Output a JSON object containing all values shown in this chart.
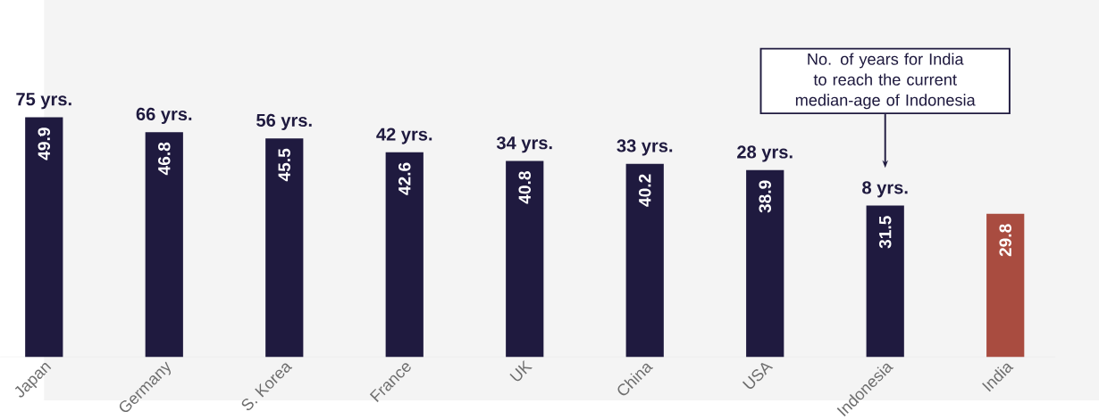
{
  "chart_data": {
    "type": "bar",
    "categories": [
      "Japan",
      "Germany",
      "S. Korea",
      "France",
      "UK",
      "China",
      "USA",
      "Indonesia",
      "India"
    ],
    "values": [
      49.9,
      46.8,
      45.5,
      42.6,
      40.8,
      40.2,
      38.9,
      31.5,
      29.8
    ],
    "colors": [
      "#1f1a3f",
      "#1f1a3f",
      "#1f1a3f",
      "#1f1a3f",
      "#1f1a3f",
      "#1f1a3f",
      "#1f1a3f",
      "#1f1a3f",
      "#a94c40"
    ],
    "data_labels": true,
    "annotations": [
      {
        "text": "75 yrs.",
        "x": "Japan",
        "y": 49.9
      },
      {
        "text": "66 yrs.",
        "x": "Germany",
        "y": 46.8
      },
      {
        "text": "56 yrs.",
        "x": "S. Korea",
        "y": 45.5
      },
      {
        "text": "42 yrs.",
        "x": "France",
        "y": 42.6
      },
      {
        "text": "34 yrs.",
        "x": "UK",
        "y": 40.8
      },
      {
        "text": "33 yrs.",
        "x": "China",
        "y": 40.2
      },
      {
        "text": "28 yrs.",
        "x": "USA",
        "y": 38.9
      },
      {
        "text": "8 yrs.",
        "x": "Indonesia",
        "y": 31.5
      },
      "No. of years for India to reach the current median-age of Indonesia"
    ]
  }
}
